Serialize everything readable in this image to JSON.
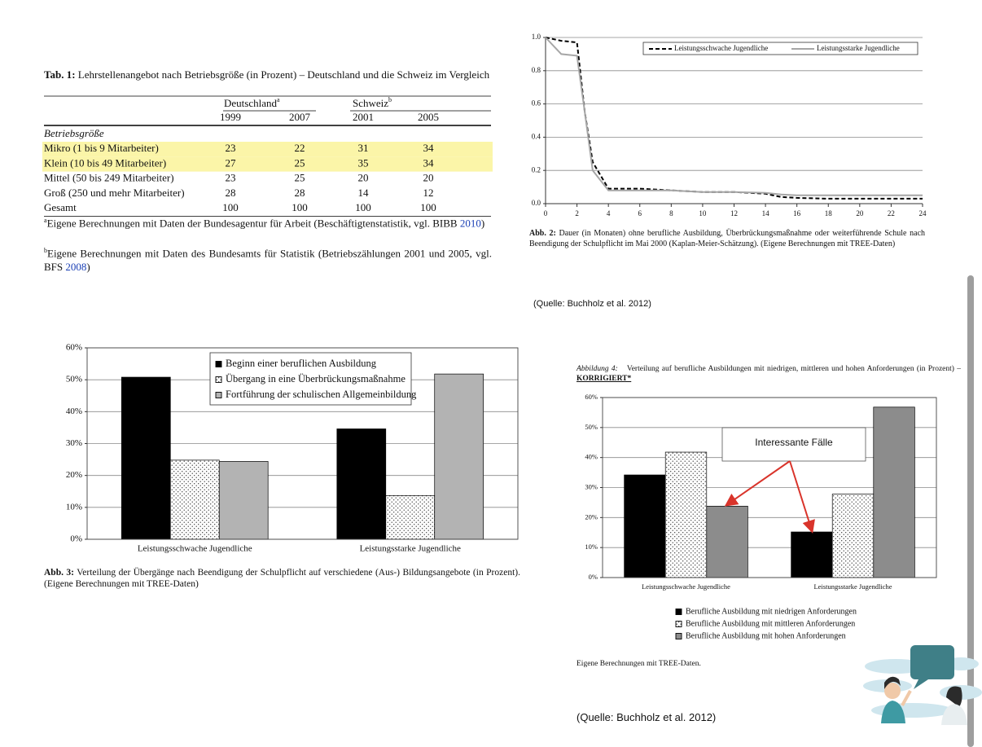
{
  "table": {
    "title_label": "Tab. 1:",
    "title": "Lehrstellenangebot nach Betriebsgröße (in Prozent) – Deutschland und die Schweiz im Vergleich",
    "groups": [
      {
        "label": "Deutschland",
        "note": "a"
      },
      {
        "label": "Schweiz",
        "note": "b"
      }
    ],
    "years": [
      1999,
      2007,
      2001,
      2005
    ],
    "section": "Betriebsgröße",
    "rows": [
      {
        "label": "Mikro (1 bis 9 Mitarbeiter)",
        "values": [
          23,
          22,
          31,
          34
        ],
        "highlight": true
      },
      {
        "label": "Klein (10 bis 49 Mitarbeiter)",
        "values": [
          27,
          25,
          35,
          34
        ],
        "highlight": true
      },
      {
        "label": "Mittel (50 bis 249 Mitarbeiter)",
        "values": [
          23,
          25,
          20,
          20
        ],
        "highlight": false
      },
      {
        "label": "Groß (250 und mehr Mitarbeiter)",
        "values": [
          28,
          28,
          14,
          12
        ],
        "highlight": false
      },
      {
        "label": "Gesamt",
        "values": [
          100,
          100,
          100,
          100
        ],
        "highlight": false
      }
    ],
    "footnotes": [
      {
        "mark": "a",
        "text": "Eigene Berechnungen mit Daten der Bundesagentur für Arbeit (Beschäftigtenstatistik, vgl. BIBB",
        "link": "2010",
        "end": ")"
      },
      {
        "mark": "b",
        "text": "Eigene Berechnungen mit Daten des Bundesamts für Statistik (Betriebszählungen 2001 und 2005, vgl. BFS",
        "link": "2008",
        "end": ")"
      }
    ]
  },
  "chart_data": [
    {
      "type": "line",
      "x": [
        0,
        1,
        2,
        2.5,
        3,
        4,
        6,
        8,
        10,
        12,
        14,
        15,
        16,
        18,
        20,
        22,
        24
      ],
      "series": [
        {
          "name": "Leistungsschwache Jugendliche",
          "color": "#000000",
          "dash": "dashed",
          "values": [
            1.0,
            0.98,
            0.97,
            0.55,
            0.25,
            0.09,
            0.09,
            0.08,
            0.07,
            0.07,
            0.06,
            0.04,
            0.035,
            0.03,
            0.03,
            0.03,
            0.03
          ]
        },
        {
          "name": "Leistungsstarke Jugendliche",
          "color": "#a6a6a6",
          "values": [
            1.0,
            0.9,
            0.89,
            0.55,
            0.2,
            0.08,
            0.08,
            0.08,
            0.07,
            0.07,
            0.065,
            0.055,
            0.05,
            0.05,
            0.05,
            0.05,
            0.05
          ]
        }
      ],
      "xlim": [
        0,
        24
      ],
      "xticks": [
        0,
        2,
        4,
        6,
        8,
        10,
        12,
        14,
        16,
        18,
        20,
        22,
        24
      ],
      "ylim": [
        0,
        1
      ],
      "yticks": [
        {
          "value": 0,
          "label": "0.0"
        },
        0.2,
        0.4,
        0.6,
        0.8,
        {
          "value": 1,
          "label": "1.0"
        }
      ],
      "grid": true,
      "legend": "top-right",
      "caption_label": "Abb. 2:",
      "caption": "Dauer (in Monaten) ohne berufliche Ausbildung, Überbrückungsmaßnahme oder weiterführende Schule nach Beendigung der Schulpflicht im Mai 2000 (Kaplan-Meier-Schätzung). (Eigene Berechnungen mit TREE-Daten)",
      "source": "(Quelle: Buchholz et al. 2012)"
    },
    {
      "type": "bar",
      "categories": [
        "Leistungsschwache Jugendliche",
        "Leistungsstarke Jugendliche"
      ],
      "series": [
        {
          "name": "Beginn einer beruflichen Ausbildung",
          "color": "#000000",
          "values": [
            50.8,
            34.6
          ]
        },
        {
          "name": "Übergang in eine Überbrückungsmaßnahme",
          "color": "#ffffff",
          "pattern": "dots",
          "values": [
            24.8,
            13.7
          ]
        },
        {
          "name": "Fortführung der schulischen Allgemeinbildung",
          "color": "#b3b3b3",
          "values": [
            24.4,
            51.8
          ]
        }
      ],
      "ylim": [
        0,
        60
      ],
      "yticks": [
        {
          "value": 0,
          "label": "0%"
        },
        {
          "value": 10,
          "label": "10%"
        },
        {
          "value": 20,
          "label": "20%"
        },
        {
          "value": 30,
          "label": "30%"
        },
        {
          "value": 40,
          "label": "40%"
        },
        {
          "value": 50,
          "label": "50%"
        },
        {
          "value": 60,
          "label": "60%"
        }
      ],
      "grid": true,
      "legend": "top-center",
      "caption_label": "Abb. 3:",
      "caption": "Verteilung der Übergänge nach Beendigung der Schulpflicht auf verschiedene (Aus-) Bildungsangebote (in Prozent). (Eigene Berechnungen mit TREE-Daten)"
    },
    {
      "type": "bar",
      "title_label": "Abbildung 4:",
      "title": "Verteilung auf berufliche Ausbildungen mit niedrigen, mittleren und hohen Anforderungen (in Prozent) –",
      "title_note": "KORRIGIERT*",
      "categories": [
        "Leistungsschwache Jugendliche",
        "Leistungsstarke Jugendliche"
      ],
      "series": [
        {
          "name": "Berufliche Ausbildung mit niedrigen Anforderungen",
          "color": "#000000",
          "values": [
            34.2,
            15.2
          ]
        },
        {
          "name": "Berufliche Ausbildung mit mittleren Anforderungen",
          "color": "#ffffff",
          "pattern": "dots",
          "values": [
            41.8,
            27.8
          ]
        },
        {
          "name": "Berufliche Ausbildung mit hohen Anforderungen",
          "color": "#8c8c8c",
          "values": [
            23.8,
            56.8
          ]
        }
      ],
      "ylim": [
        0,
        60
      ],
      "yticks": [
        {
          "value": 0,
          "label": "0%"
        },
        {
          "value": 10,
          "label": "10%"
        },
        {
          "value": 20,
          "label": "20%"
        },
        {
          "value": 30,
          "label": "30%"
        },
        {
          "value": 40,
          "label": "40%"
        },
        {
          "value": 50,
          "label": "50%"
        },
        {
          "value": 60,
          "label": "60%"
        }
      ],
      "grid": true,
      "legend": "bottom",
      "annotation": "Interessante Fälle",
      "note": "Eigene Berechnungen mit TREE-Daten.",
      "source": "(Quelle: Buchholz et al. 2012)"
    }
  ]
}
